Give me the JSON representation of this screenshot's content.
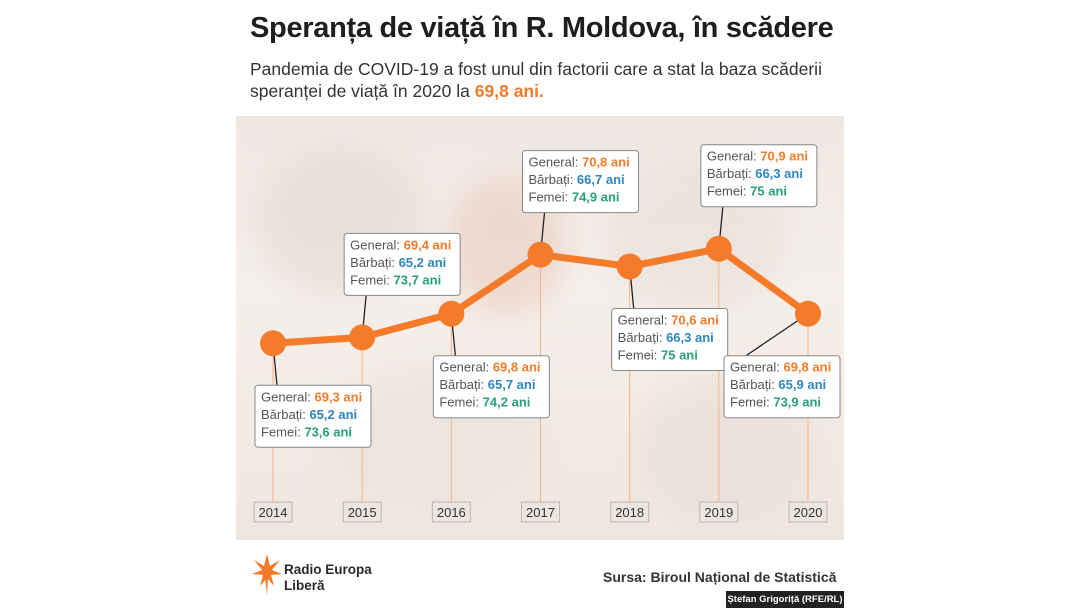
{
  "header": {
    "title": "Speranța de viață în R. Moldova, în scădere",
    "subtitle_text": "Pandemia de COVID-19 a fost unul din factorii care a stat la baza scăderii speranței de viață în 2020 la",
    "subtitle_highlight": "69,8 ani."
  },
  "colors": {
    "accent": "#f47b2a",
    "men": "#2e86c1",
    "women": "#27a17a",
    "label_text": "#555555"
  },
  "labels": {
    "general": "General:",
    "men": "Bărbați:",
    "women": "Femei:"
  },
  "chart_data": {
    "type": "line",
    "title": "Speranța de viață în R. Moldova, în scădere",
    "xlabel": "",
    "ylabel": "",
    "categories": [
      "2014",
      "2015",
      "2016",
      "2017",
      "2018",
      "2019",
      "2020"
    ],
    "series": [
      {
        "name": "General",
        "values": [
          69.3,
          69.4,
          69.8,
          70.8,
          70.6,
          70.9,
          69.8
        ],
        "labels": [
          "69,3 ani",
          "69,4 ani",
          "69,8 ani",
          "70,8 ani",
          "70,6 ani",
          "70,9 ani",
          "69,8 ani"
        ]
      },
      {
        "name": "Bărbați",
        "values": [
          65.2,
          65.2,
          65.7,
          66.7,
          66.3,
          66.3,
          65.9
        ],
        "labels": [
          "65,2 ani",
          "65,2 ani",
          "65,7 ani",
          "66,7 ani",
          "66,3 ani",
          "66,3 ani",
          "65,9 ani"
        ]
      },
      {
        "name": "Femei",
        "values": [
          73.6,
          73.7,
          74.2,
          74.9,
          75,
          75,
          73.9
        ],
        "labels": [
          "73,6 ani",
          "73,7 ani",
          "74,2 ani",
          "74,9 ani",
          "75 ani",
          "75 ani",
          "73,9 ani"
        ]
      }
    ],
    "label_position": [
      "below",
      "above",
      "below",
      "above",
      "below",
      "above",
      "below"
    ],
    "ylim": [
      69.0,
      71.2
    ],
    "grid": false
  },
  "footer": {
    "logo_line1": "Radio Europa",
    "logo_line2": "Liberă",
    "source": "Sursa: Biroul Național de Statistică",
    "credit": "Ștefan Grigoriță (RFE/RL)"
  }
}
